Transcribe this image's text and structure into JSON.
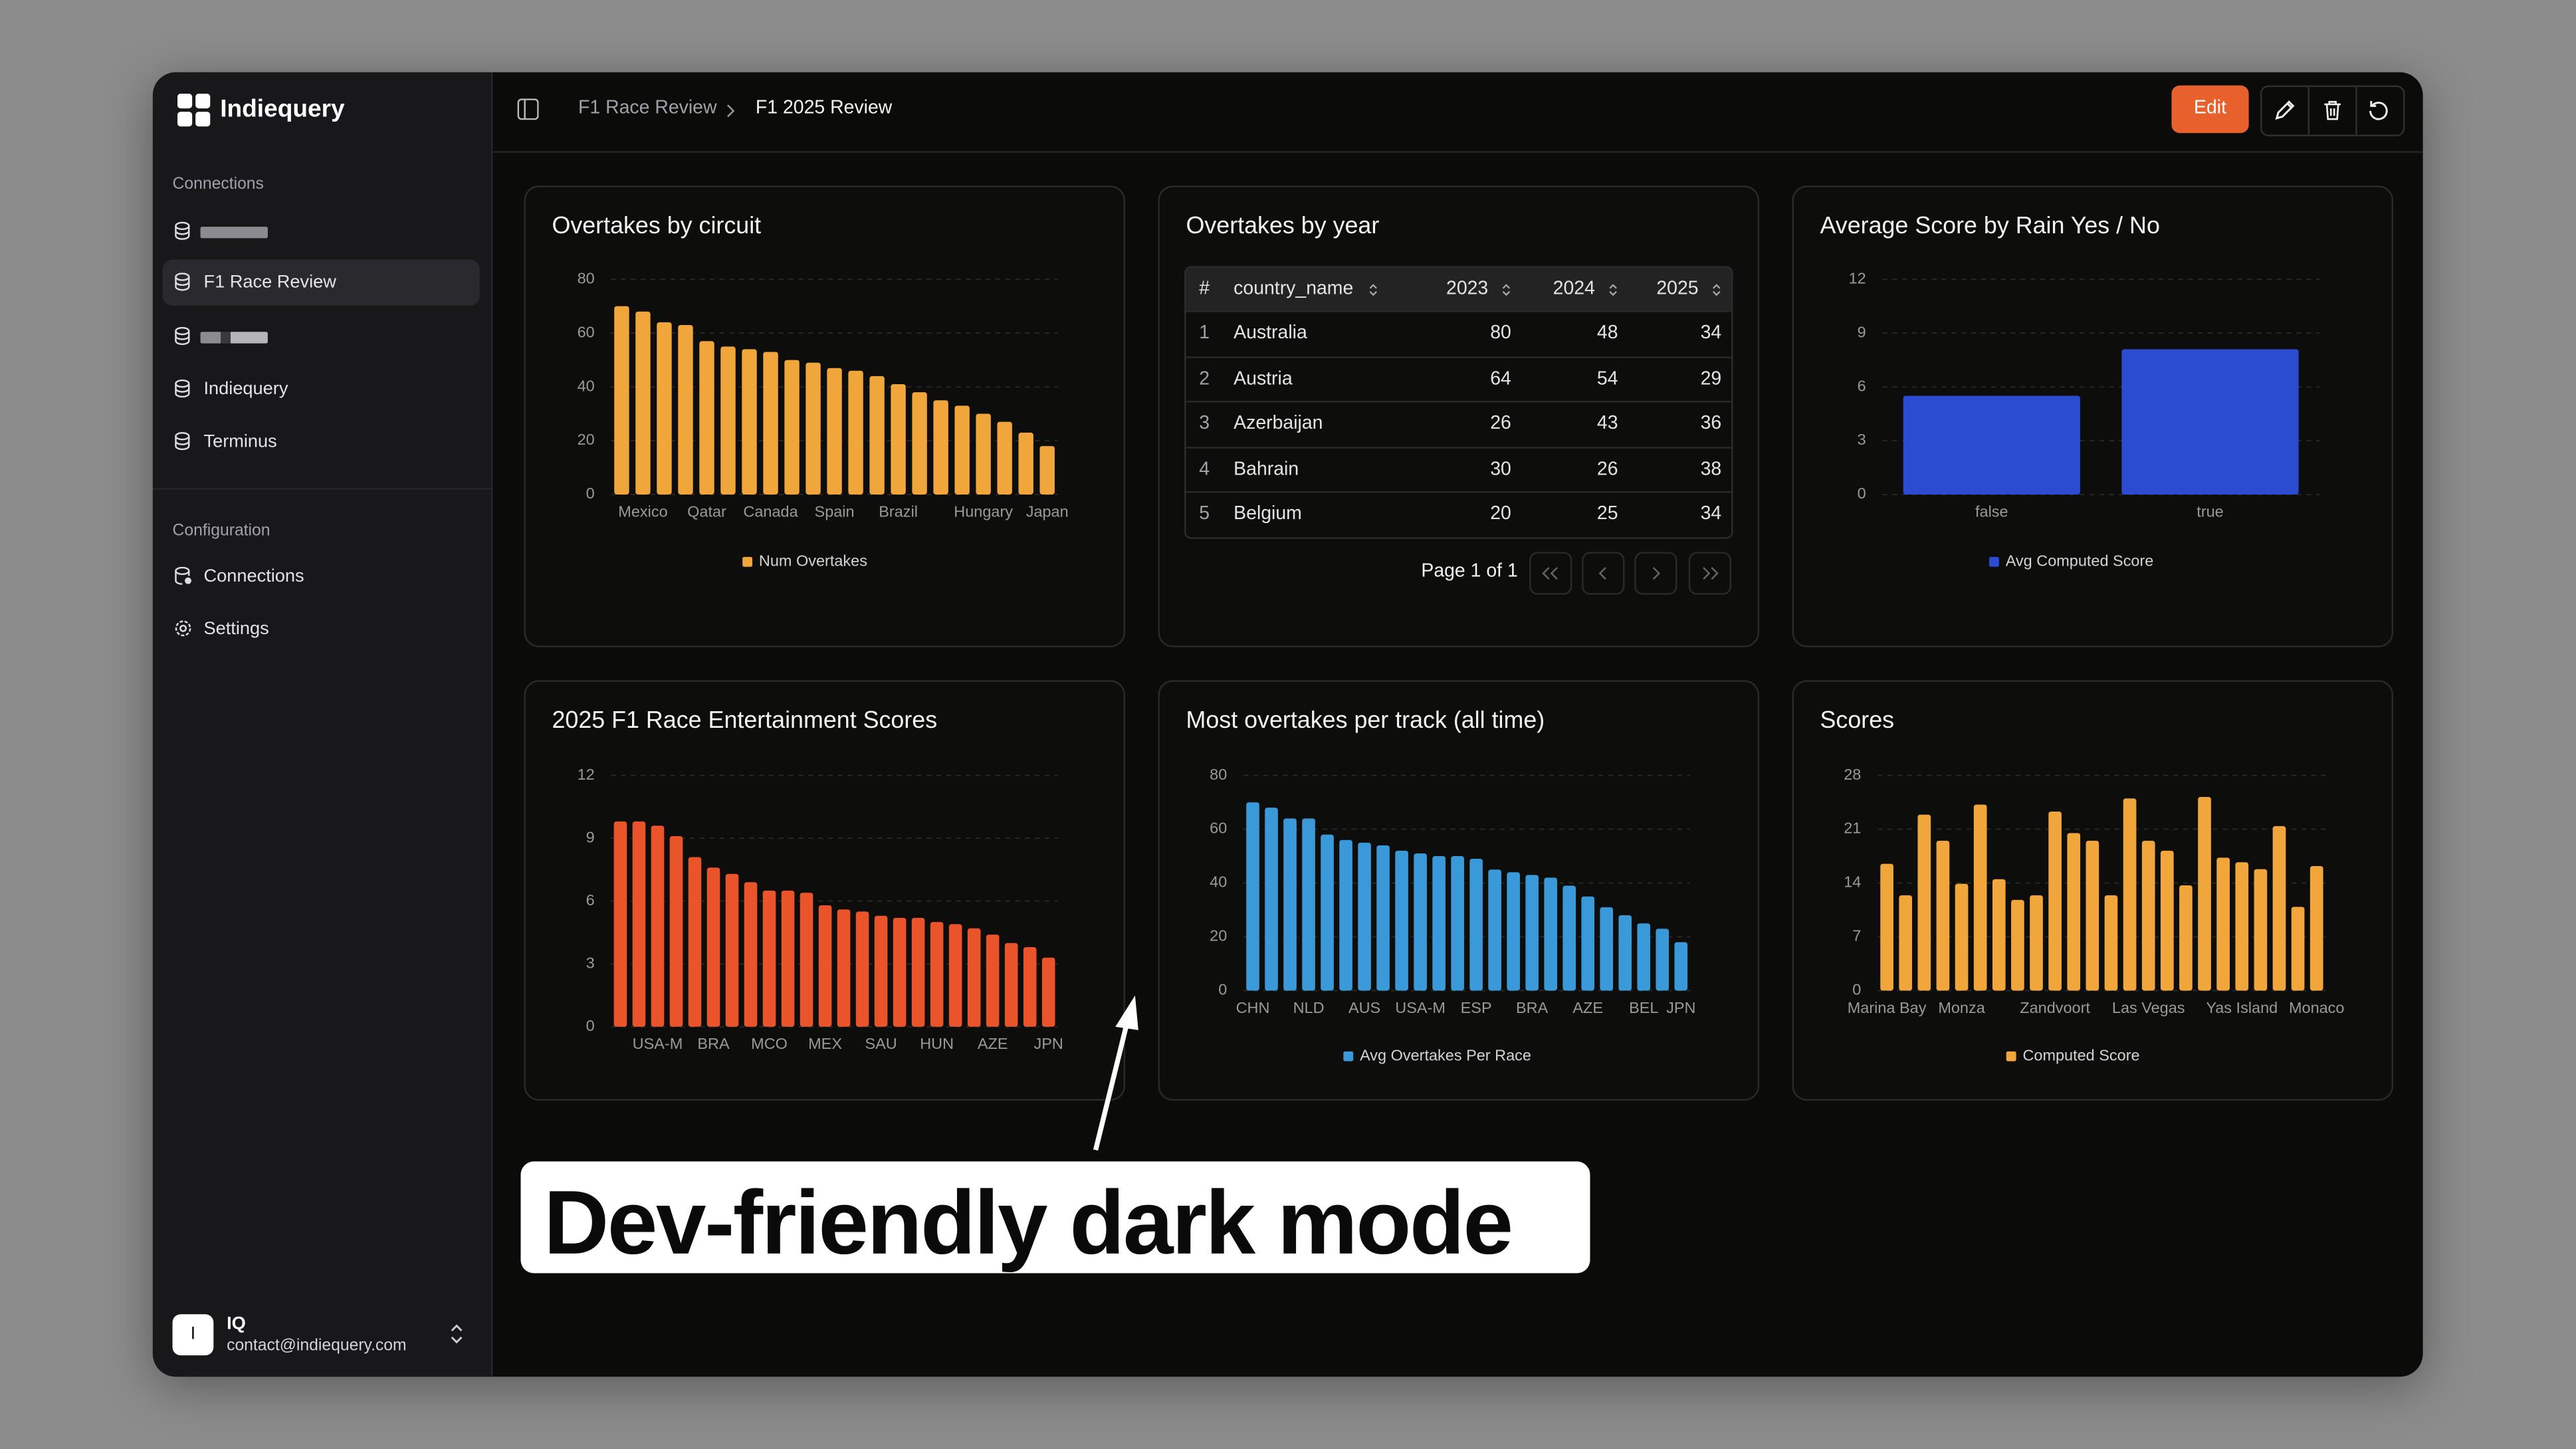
{
  "sidebar": {
    "brand": "Indiequery",
    "connections_heading": "Connections",
    "connections": [
      "F1 Race Review",
      "Indiequery",
      "Terminus"
    ],
    "configuration_heading": "Configuration",
    "configuration": [
      "Connections",
      "Settings"
    ],
    "user": {
      "avatar": "I",
      "name": "IQ",
      "email": "contact@indiequery.com"
    }
  },
  "header": {
    "breadcrumb": [
      "F1 Race Review",
      "F1 2025 Review"
    ],
    "edit": "Edit"
  },
  "table": {
    "title": "Overtakes by year",
    "columns": [
      "#",
      "country_name",
      "2023",
      "2024",
      "2025"
    ],
    "rows": [
      [
        1,
        "Australia",
        80,
        48,
        34
      ],
      [
        2,
        "Austria",
        64,
        54,
        29
      ],
      [
        3,
        "Azerbaijan",
        26,
        43,
        36
      ],
      [
        4,
        "Bahrain",
        30,
        26,
        38
      ],
      [
        5,
        "Belgium",
        20,
        25,
        34
      ]
    ],
    "pagination": "Page 1 of 1"
  },
  "chart_data": [
    {
      "type": "bar",
      "title": "Overtakes by circuit",
      "categories": [
        null,
        "Mexico",
        null,
        null,
        "Qatar",
        null,
        null,
        "Canada",
        null,
        null,
        "Spain",
        null,
        null,
        "Brazil",
        null,
        null,
        null,
        "Hungary",
        null,
        null,
        "Japan"
      ],
      "series": [
        {
          "name": "Num Overtakes",
          "color": "#f0a63a",
          "values": [
            70,
            68,
            64,
            63,
            57,
            55,
            54,
            53,
            50,
            49,
            47,
            46,
            44,
            41,
            38,
            35,
            33,
            30,
            27,
            23,
            18
          ]
        }
      ],
      "ylim": [
        0,
        80
      ],
      "yticks": [
        0,
        20,
        40,
        60,
        80
      ],
      "grid": true
    },
    {
      "type": "bar",
      "title": "Average Score by Rain Yes / No",
      "categories": [
        "false",
        "true"
      ],
      "series": [
        {
          "name": "Avg Computed Score",
          "color": "#2b4bd0",
          "values": [
            5.5,
            8.1
          ]
        }
      ],
      "ylim": [
        0,
        12
      ],
      "yticks": [
        0,
        3,
        6,
        9,
        12
      ],
      "grid": true
    },
    {
      "type": "bar",
      "title": "2025 F1 Race Entertainment Scores",
      "categories": [
        null,
        null,
        "USA-M",
        null,
        null,
        "BRA",
        null,
        null,
        "MCO",
        null,
        null,
        "MEX",
        null,
        null,
        "SAU",
        null,
        null,
        "HUN",
        null,
        null,
        "AZE",
        null,
        null,
        "JPN"
      ],
      "series": [
        {
          "color": "#e9542a",
          "values": [
            9.8,
            9.8,
            9.6,
            9.1,
            8.1,
            7.6,
            7.3,
            6.9,
            6.5,
            6.5,
            6.4,
            5.8,
            5.6,
            5.5,
            5.3,
            5.2,
            5.2,
            5.0,
            4.9,
            4.7,
            4.4,
            4.0,
            3.8,
            3.3
          ]
        }
      ],
      "ylim": [
        0,
        12
      ],
      "yticks": [
        0,
        3,
        6,
        9,
        12
      ],
      "grid": true
    },
    {
      "type": "bar",
      "title": "Most overtakes per track (all time)",
      "categories": [
        "CHN",
        null,
        null,
        "NLD",
        null,
        null,
        "AUS",
        null,
        null,
        "USA-M",
        null,
        null,
        "ESP",
        null,
        null,
        "BRA",
        null,
        null,
        "AZE",
        null,
        null,
        "BEL",
        null,
        "JPN"
      ],
      "series": [
        {
          "name": "Avg Overtakes Per Race",
          "color": "#3a9ad9",
          "values": [
            70,
            68,
            64,
            64,
            58,
            56,
            55,
            54,
            52,
            51,
            50,
            50,
            49,
            45,
            44,
            43,
            42,
            39,
            35,
            31,
            28,
            25,
            23,
            18
          ]
        }
      ],
      "ylim": [
        0,
        80
      ],
      "yticks": [
        0,
        20,
        40,
        60,
        80
      ],
      "grid": true
    },
    {
      "type": "bar",
      "title": "Scores",
      "categories": [
        "Marina Bay",
        null,
        null,
        null,
        "Monza",
        null,
        null,
        null,
        null,
        "Zandvoort",
        null,
        null,
        null,
        null,
        "Las Vegas",
        null,
        null,
        null,
        null,
        "Yas Island",
        null,
        null,
        null,
        "Monaco"
      ],
      "series": [
        {
          "name": "Computed Score",
          "color": "#f0a63a",
          "values": [
            16.5,
            12.4,
            22.9,
            19.5,
            13.9,
            24.2,
            14.5,
            11.8,
            12.4,
            23.3,
            20.5,
            19.5,
            12.4,
            25.0,
            19.5,
            18.2,
            13.7,
            25.2,
            17.3,
            16.7,
            15.8,
            21.4,
            10.9,
            16.2
          ]
        }
      ],
      "ylim": [
        0,
        28
      ],
      "yticks": [
        0,
        7,
        14,
        21,
        28
      ],
      "grid": true
    }
  ],
  "callout": "Dev-friendly dark mode"
}
